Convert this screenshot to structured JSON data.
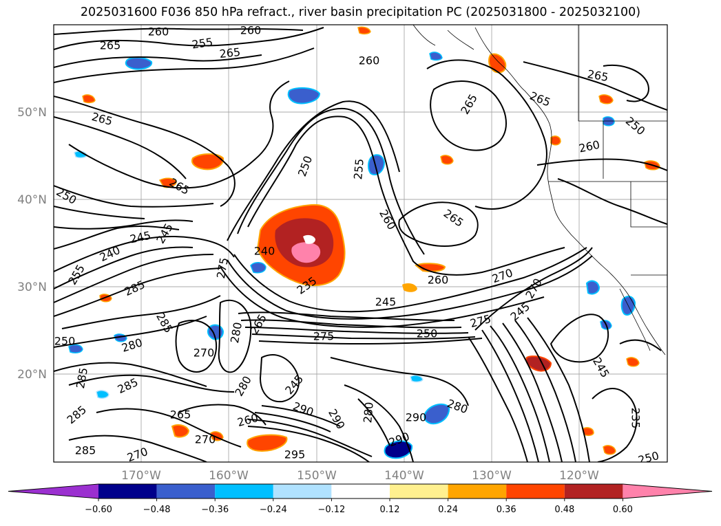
{
  "title": "2025031600 F036 850 hPa refract., river basin precipitation PC (2025031800 - 2025032100)",
  "lat_labels": [
    "50°N",
    "40°N",
    "30°N",
    "20°N"
  ],
  "lon_labels": [
    "170°W",
    "160°W",
    "150°W",
    "140°W",
    "130°W",
    "120°W"
  ],
  "colorbar": {
    "colors": [
      "#9b30d0",
      "#00008b",
      "#3a5fcd",
      "#00bfff",
      "#b0e2ff",
      "#ffffff",
      "#fff08f",
      "#ffa500",
      "#ff4500",
      "#b22222",
      "#ff82ab"
    ],
    "ticks": [
      "−0.60",
      "−0.48",
      "−0.36",
      "−0.24",
      "−0.12",
      "0.12",
      "0.24",
      "0.36",
      "0.48",
      "0.60"
    ]
  },
  "contour_labels": [
    "260",
    "255",
    "260",
    "265",
    "265",
    "260",
    "265",
    "265",
    "265",
    "265",
    "250",
    "260",
    "265",
    "255",
    "260",
    "265",
    "250",
    "250",
    "245",
    "240",
    "245",
    "240",
    "275",
    "285",
    "235",
    "245",
    "260",
    "270",
    "275",
    "285",
    "280",
    "270",
    "280",
    "265",
    "275",
    "250",
    "245",
    "270",
    "255",
    "250",
    "285",
    "285",
    "280",
    "245",
    "280",
    "290",
    "290",
    "280",
    "265",
    "270",
    "290",
    "285",
    "295",
    "290",
    "260",
    "270",
    "285",
    "245",
    "235",
    "250"
  ]
}
